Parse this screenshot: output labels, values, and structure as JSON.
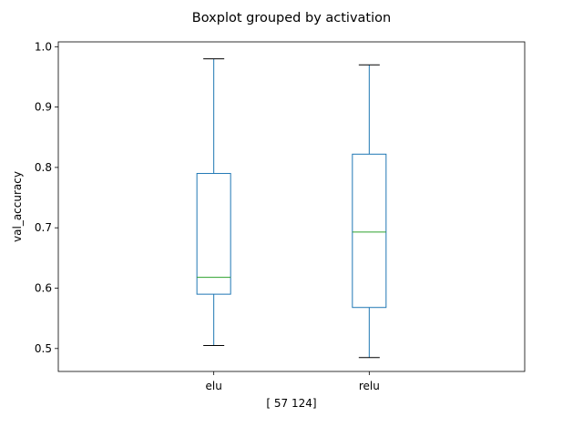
{
  "chart_data": {
    "type": "box",
    "title": "Boxplot grouped by activation",
    "xlabel": "[ 57 124]",
    "ylabel": "val_accuracy",
    "categories": [
      "elu",
      "relu"
    ],
    "boxes": [
      {
        "category": "elu",
        "whisker_low": 0.505,
        "q1": 0.59,
        "median": 0.618,
        "q3": 0.79,
        "whisker_high": 0.98
      },
      {
        "category": "relu",
        "whisker_low": 0.485,
        "q1": 0.568,
        "median": 0.693,
        "q3": 0.822,
        "whisker_high": 0.97
      }
    ],
    "ylim": [
      0.462,
      1.008
    ],
    "yticks": [
      "0.5",
      "0.6",
      "0.7",
      "0.8",
      "0.9",
      "1.0"
    ],
    "grid": false,
    "colors": {
      "box": "#1f77b4",
      "median": "#2ca02c",
      "cap": "#000000",
      "axes": "#000000"
    }
  }
}
